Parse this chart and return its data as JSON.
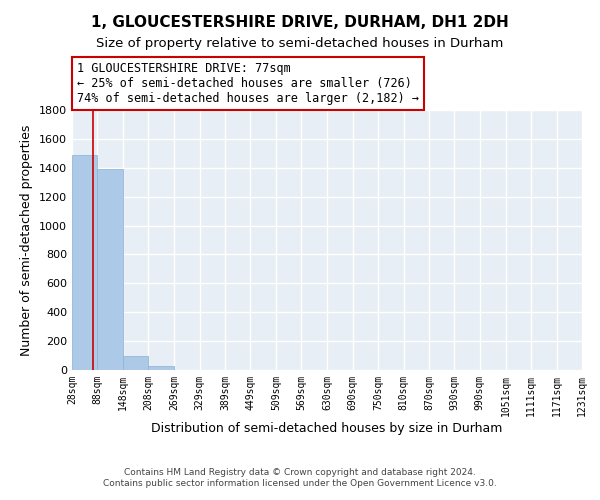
{
  "title": "1, GLOUCESTERSHIRE DRIVE, DURHAM, DH1 2DH",
  "subtitle": "Size of property relative to semi-detached houses in Durham",
  "xlabel": "Distribution of semi-detached houses by size in Durham",
  "ylabel": "Number of semi-detached properties",
  "bar_color": "#adc9e8",
  "bar_edge_color": "#8ab0d0",
  "bin_edges": [
    28,
    88,
    148,
    208,
    269,
    329,
    389,
    449,
    509,
    569,
    630,
    690,
    750,
    810,
    870,
    930,
    990,
    1051,
    1111,
    1171,
    1231
  ],
  "bar_heights": [
    1490,
    1390,
    100,
    30,
    0,
    0,
    0,
    0,
    0,
    0,
    0,
    0,
    0,
    0,
    0,
    0,
    0,
    0,
    0,
    0
  ],
  "property_size": 77,
  "property_line_color": "#cc0000",
  "ylim": [
    0,
    1800
  ],
  "yticks": [
    0,
    200,
    400,
    600,
    800,
    1000,
    1200,
    1400,
    1600,
    1800
  ],
  "annotation_text": "1 GLOUCESTERSHIRE DRIVE: 77sqm\n← 25% of semi-detached houses are smaller (726)\n74% of semi-detached houses are larger (2,182) →",
  "footer_line1": "Contains HM Land Registry data © Crown copyright and database right 2024.",
  "footer_line2": "Contains public sector information licensed under the Open Government Licence v3.0.",
  "background_color": "#ffffff",
  "plot_bg_color": "#e8eef5",
  "grid_color": "#ffffff",
  "title_fontsize": 11,
  "subtitle_fontsize": 9.5,
  "annot_fontsize": 8.5
}
